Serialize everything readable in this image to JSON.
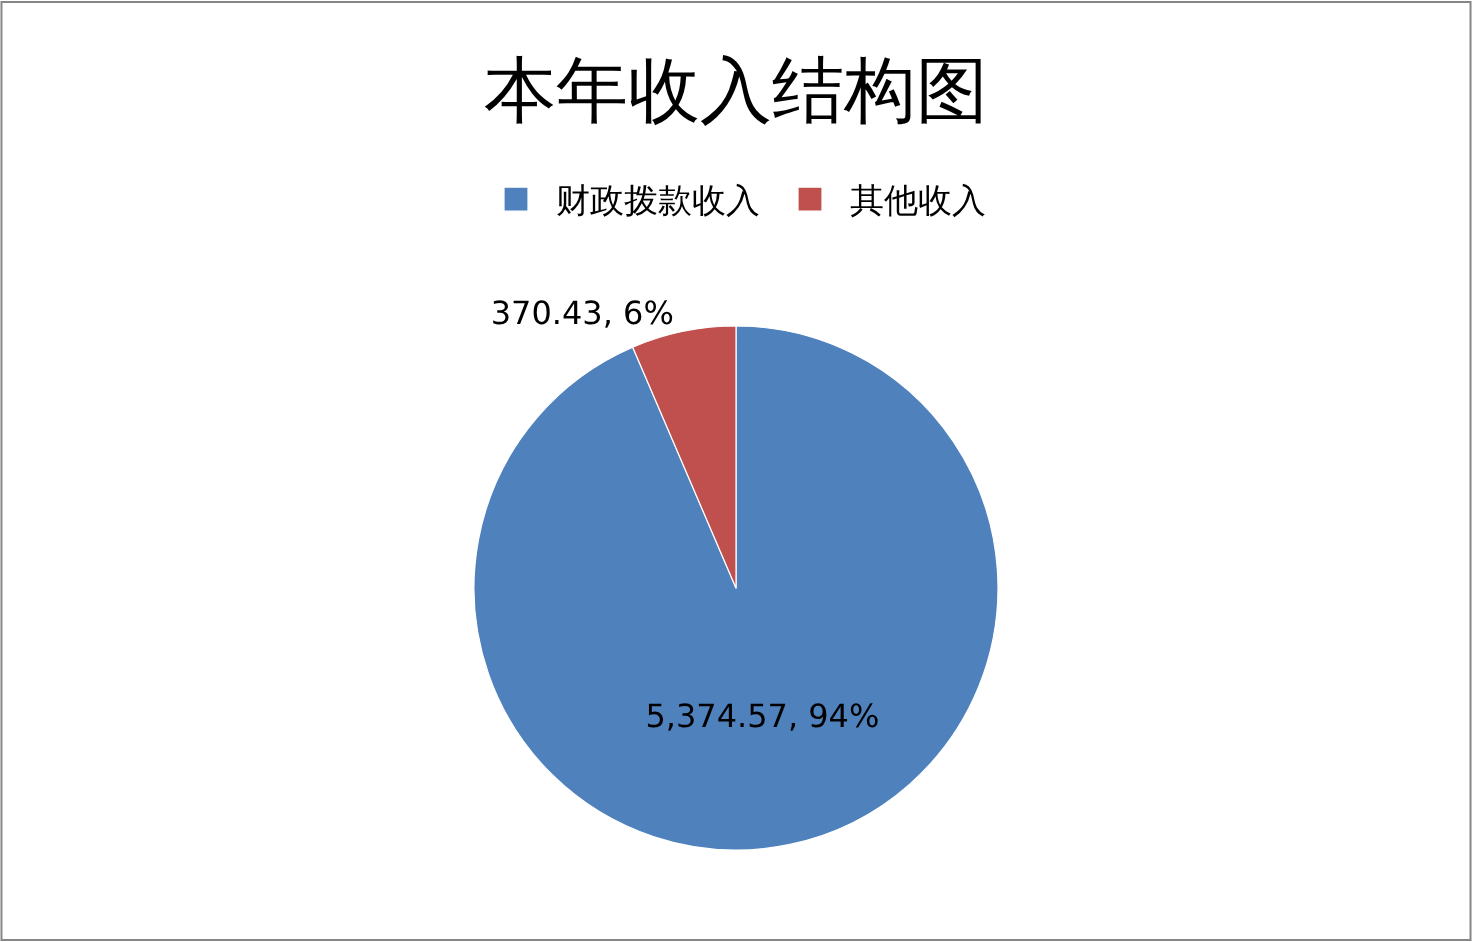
{
  "chart_data": {
    "type": "pie",
    "title": "本年收入结构图",
    "categories": [
      "财政拨款收入",
      "其他收入"
    ],
    "values": [
      5374.57,
      370.43
    ],
    "colors": [
      "#4f81bd",
      "#c0504d"
    ],
    "value_labels": [
      "5,374.57, 94%",
      "370.43, 6%"
    ],
    "legend": "top"
  }
}
